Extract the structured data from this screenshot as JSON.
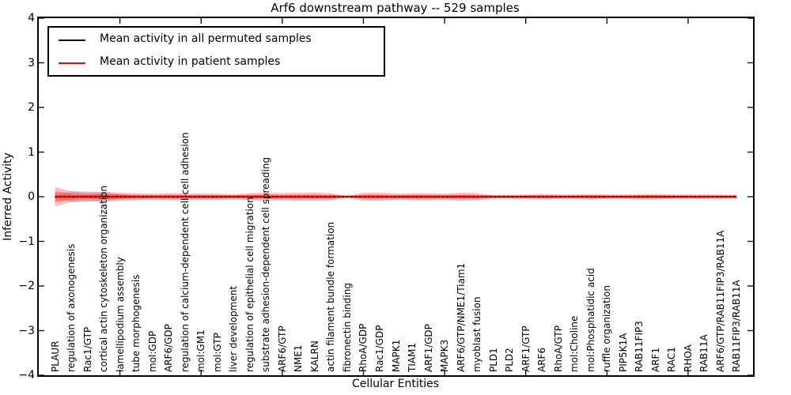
{
  "title": "Arf6 downstream pathway -- 529 samples",
  "legend": {
    "items": [
      {
        "label": "Mean activity in all permuted samples",
        "color": "#000000"
      },
      {
        "label": "Mean activity in patient samples",
        "color": "#ff0000"
      }
    ]
  },
  "chart_data": {
    "type": "line",
    "title": "Arf6 downstream pathway -- 529 samples",
    "xlabel": "Cellular Entities",
    "ylabel": "Inferred Activity",
    "ylim": [
      -4,
      4
    ],
    "xlim": [
      0,
      44
    ],
    "grid": false,
    "legend_position": "upper left",
    "ytick_labels": [
      "4",
      "3",
      "2",
      "1",
      "0",
      "−1",
      "−2",
      "−3",
      "−4"
    ],
    "ytick_values": [
      4,
      3,
      2,
      1,
      0,
      -1,
      -2,
      -3,
      -4
    ],
    "xticks_numeric": [
      5,
      10,
      15,
      20,
      25,
      30,
      35,
      40
    ],
    "categories": [
      "PLAUR",
      "regulation of axonogenesis",
      "Rac1/GTP",
      "cortical actin cytoskeleton organization",
      "lamellipodium assembly",
      "tube morphogenesis",
      "mol:GDP",
      "ARF6/GDP",
      "regulation of calcium-dependent cell-cell adhesion",
      "mol:GM1",
      "mol:GTP",
      "liver development",
      "regulation of epithelial cell migration",
      "substrate adhesion-dependent cell spreading",
      "ARF6/GTP",
      "NME1",
      "KALRN",
      "actin filament bundle formation",
      "fibronectin binding",
      "RhoA/GDP",
      "Rac1/GDP",
      "MAPK1",
      "TIAM1",
      "ARF1/GDP",
      "MAPK3",
      "ARF6/GTP/NME1/Tiam1",
      "myoblast fusion",
      "PLD1",
      "PLD2",
      "ARF1/GTP",
      "ARF6",
      "RhoA/GTP",
      "mol:Choline",
      "mol:Phosphatidic acid",
      "ruffle organization",
      "PIP5K1A",
      "RAB11FIP3",
      "ARF1",
      "RAC1",
      "RHOA",
      "RAB11A",
      "ARF6/GTP/RAB11FIP3/RAB11A",
      "RAB11FIP3/RAB11A"
    ],
    "series": [
      {
        "name": "Mean activity in all permuted samples",
        "color": "#000000",
        "line_style": "dotted",
        "constant_value": 0
      },
      {
        "name": "Mean activity in patient samples",
        "color": "#ff0000",
        "line_style": "solid",
        "constant_value": 0
      }
    ],
    "bands": {
      "patient_band_color": "#ff0000",
      "patient_outer_halfwidth": [
        0.22,
        0.12,
        0.09,
        0.11,
        0.09,
        0.08,
        0.07,
        0.08,
        0.08,
        0.07,
        0.07,
        0.06,
        0.08,
        0.09,
        0.08,
        0.09,
        0.09,
        0.08,
        0.02,
        0.09,
        0.09,
        0.07,
        0.08,
        0.08,
        0.07,
        0.09,
        0.08,
        0.04,
        0.04,
        0.05,
        0.06,
        0.05,
        0.05,
        0.06,
        0.05,
        0.05,
        0.06,
        0.06,
        0.05,
        0.05,
        0.05,
        0.045,
        0.045
      ],
      "patient_inner_band_ratio": 0.55,
      "permuted_band_color": "#999999",
      "permuted_halfwidth": [
        0.05,
        0.12,
        0.12,
        0.1,
        0.06,
        0.015,
        0.015,
        0.015,
        0.015,
        0.015,
        0.015,
        0.015,
        0.015,
        0.015,
        0.015,
        0.015,
        0.015,
        0.015,
        0.015,
        0.015,
        0.015,
        0.015,
        0.015,
        0.015,
        0.015,
        0.015,
        0.015,
        0.015,
        0.015,
        0.015,
        0.015,
        0.015,
        0.015,
        0.015,
        0.015,
        0.015,
        0.015,
        0.015,
        0.015,
        0.015,
        0.015,
        0.015,
        0.015
      ]
    }
  }
}
